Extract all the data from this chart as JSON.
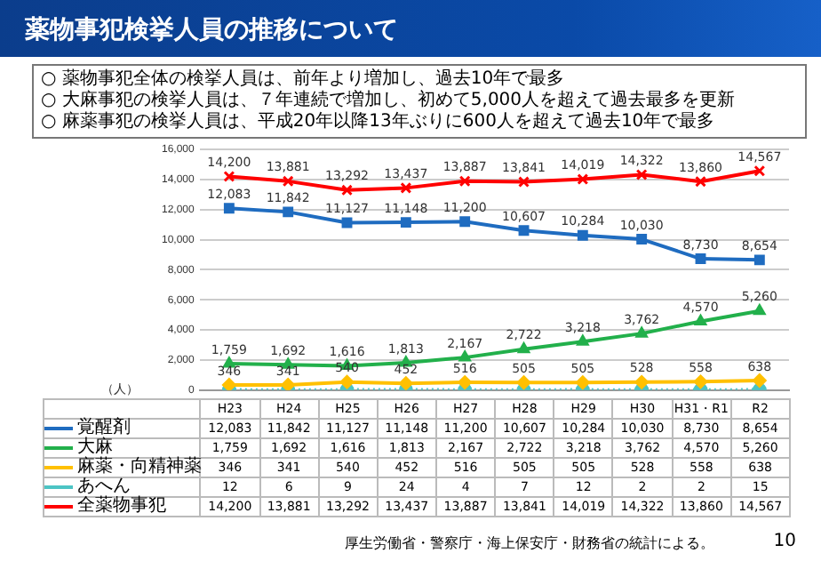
{
  "chart_data": {
    "type": "line",
    "title": "薬物事犯検挙人員の推移について",
    "annotations": [
      "○ 薬物事犯全体の検挙人員は、前年より増加し、過去10年で最多",
      "○ 大麻事犯の検挙人員は、７年連続で増加し、初めて5,000人を超えて過去最多を更新",
      "○ 麻薬事犯の検挙人員は、平成20年以降13年ぶりに600人を超えて過去10年で最多",
      "厚生労働省・警察庁・海上保安庁・財務省の統計による。",
      "10"
    ],
    "ylabel": "（人）",
    "categories": [
      "H23",
      "H24",
      "H25",
      "H26",
      "H27",
      "H28",
      "H29",
      "H30",
      "H31・R1",
      "R2"
    ],
    "ylim": [
      0,
      16000
    ],
    "yticks": [
      0,
      {
        "value": 2000,
        "label": "2,000"
      },
      {
        "value": 4000,
        "label": "4,000"
      },
      {
        "value": 6000,
        "label": "6,000"
      },
      {
        "value": 8000,
        "label": "8,000"
      },
      {
        "value": 10000,
        "label": "10,000"
      },
      {
        "value": 12000,
        "label": "12,000"
      },
      {
        "value": 14000,
        "label": "14,000"
      },
      {
        "value": 16000,
        "label": "16,000"
      }
    ],
    "grid": "y",
    "legend": "bottom",
    "data_labels": true,
    "series": [
      {
        "name": "覚醒剤",
        "color": "#1f6cc0",
        "marker": "square",
        "values": [
          12083,
          11842,
          11127,
          11148,
          11200,
          10607,
          10284,
          10030,
          8730,
          8654
        ],
        "value_labels": [
          "12,083",
          "11,842",
          "11,127",
          "11,148",
          "11,200",
          "10,607",
          "10,284",
          "10,030",
          "8,730",
          "8,654"
        ]
      },
      {
        "name": "大麻",
        "color": "#22b04b",
        "marker": "triangle",
        "values": [
          1759,
          1692,
          1616,
          1813,
          2167,
          2722,
          3218,
          3762,
          4570,
          5260
        ],
        "value_labels": [
          "1,759",
          "1,692",
          "1,616",
          "1,813",
          "2,167",
          "2,722",
          "3,218",
          "3,762",
          "4,570",
          "5,260"
        ]
      },
      {
        "name": "麻薬・向精神薬",
        "color": "#ffc000",
        "marker": "diamond",
        "values": [
          346,
          341,
          540,
          452,
          516,
          505,
          505,
          528,
          558,
          638
        ],
        "value_labels": [
          "346",
          "341",
          "540",
          "452",
          "516",
          "505",
          "505",
          "528",
          "558",
          "638"
        ]
      },
      {
        "name": "あへん",
        "color": "#4cc4c4",
        "marker": "circle",
        "line_style": "dotted",
        "values": [
          12,
          6,
          9,
          24,
          4,
          7,
          12,
          2,
          2,
          15
        ]
      },
      {
        "name": "全薬物事犯",
        "color": "#ff0000",
        "marker": "cross",
        "values": [
          14200,
          13881,
          13292,
          13437,
          13887,
          13841,
          14019,
          14322,
          13860,
          14567
        ],
        "value_labels": [
          "14,200",
          "13,881",
          "13,292",
          "13,437",
          "13,887",
          "13,841",
          "14,019",
          "14,322",
          "13,860",
          "14,567"
        ]
      }
    ]
  }
}
